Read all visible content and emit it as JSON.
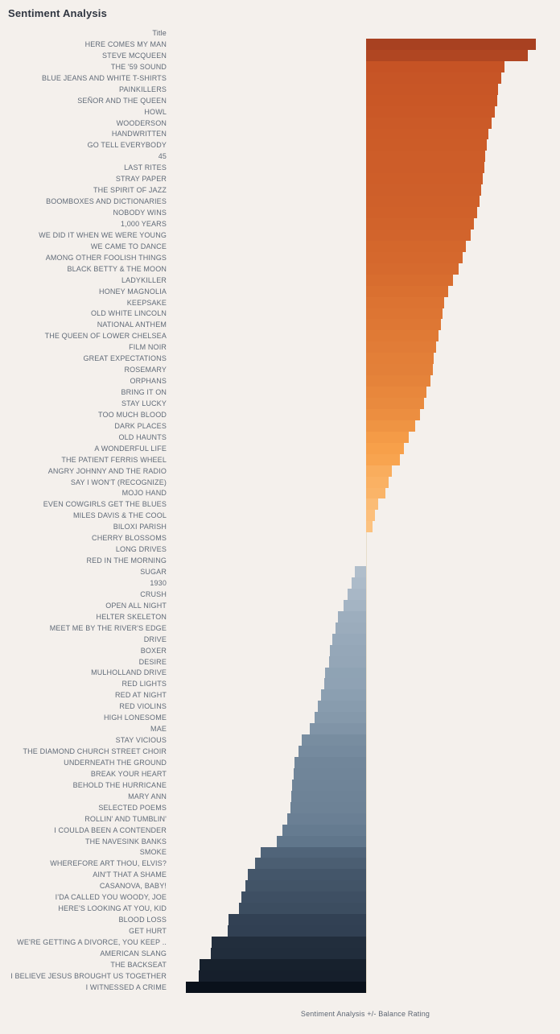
{
  "page": {
    "title": "Sentiment Analysis",
    "column_header": "Title",
    "axis_label": "Sentiment Analysis +/- Balance Rating"
  },
  "colors": {
    "background": "#f4f0ec",
    "title_text": "#2f3540",
    "label_text": "#616b78",
    "axis_line": "#e7ddcb",
    "positive_ramp": [
      [
        0.0,
        "#fdc98a"
      ],
      [
        0.2,
        "#f8a24b"
      ],
      [
        0.45,
        "#da7030"
      ],
      [
        0.77,
        "#c65325"
      ],
      [
        1.0,
        "#9e3b20"
      ]
    ],
    "negative_ramp": [
      [
        0.0,
        "#bcc8d4"
      ],
      [
        0.25,
        "#8b9fb1"
      ],
      [
        0.5,
        "#5f758a"
      ],
      [
        0.75,
        "#344457"
      ],
      [
        1.0,
        "#0a111b"
      ]
    ]
  },
  "chart_data": {
    "type": "bar",
    "orientation": "horizontal_diverging",
    "title": "Sentiment Analysis",
    "xlabel": "Sentiment Analysis +/- Balance Rating",
    "ylabel": "Title",
    "axis_numeric_ticks_visible": false,
    "legend": "none",
    "grid": "off",
    "value_units": "estimated +/- balance rating, normalized so the largest negative bar = -1.0 (no numeric axis labels shown)",
    "xlim": [
      -1.08,
      1.08
    ],
    "color_encoding": "bar value mapped to diverging orange(positive)/blue-black(negative) ramp",
    "categories": [
      "HERE COMES MY MAN",
      "STEVE MCQUEEN",
      "THE '59 SOUND",
      "BLUE JEANS AND WHITE T-SHIRTS",
      "PAINKILLERS",
      "SEÑOR AND THE QUEEN",
      "HOWL",
      "WOODERSON",
      "HANDWRITTEN",
      "GO TELL EVERYBODY",
      "45",
      "LAST RITES",
      "STRAY PAPER",
      "THE SPIRIT OF JAZZ",
      "BOOMBOXES AND DICTIONARIES",
      "NOBODY WINS",
      "1,000 YEARS",
      "WE DID IT WHEN WE WERE YOUNG",
      "WE CAME TO DANCE",
      "AMONG OTHER FOOLISH THINGS",
      "BLACK BETTY & THE MOON",
      "LADYKILLER",
      "HONEY MAGNOLIA",
      "KEEPSAKE",
      "OLD WHITE LINCOLN",
      "NATIONAL ANTHEM",
      "THE QUEEN OF LOWER CHELSEA",
      "FILM NOIR",
      "GREAT EXPECTATIONS",
      "ROSEMARY",
      "ORPHANS",
      "BRING IT ON",
      "STAY LUCKY",
      "TOO MUCH BLOOD",
      "DARK PLACES",
      "OLD HAUNTS",
      "A WONDERFUL LIFE",
      "THE PATIENT FERRIS WHEEL",
      "ANGRY JOHNNY AND THE RADIO",
      "SAY I WON'T (RECOGNIZE)",
      "MOJO HAND",
      "EVEN COWGIRLS GET THE BLUES",
      "MILES DAVIS & THE COOL",
      "BILOXI PARISH",
      "CHERRY BLOSSOMS",
      "LONG DRIVES",
      "RED IN THE MORNING",
      "SUGAR",
      "1930",
      "CRUSH",
      "OPEN ALL NIGHT",
      "HELTER SKELETON",
      "MEET ME BY THE RIVER'S EDGE",
      "DRIVE",
      "BOXER",
      "DESIRE",
      "MULHOLLAND DRIVE",
      "RED LIGHTS",
      "RED AT NIGHT",
      "RED VIOLINS",
      "HIGH LONESOME",
      "MAE",
      "STAY VICIOUS",
      "THE DIAMOND CHURCH STREET CHOIR",
      "UNDERNEATH THE GROUND",
      "BREAK YOUR HEART",
      "BEHOLD THE HURRICANE",
      "MARY ANN",
      "SELECTED POEMS",
      "ROLLIN' AND TUMBLIN'",
      "I COULDA BEEN A CONTENDER",
      "THE NAVESINK BANKS",
      "SMOKE",
      "WHEREFORE ART THOU, ELVIS?",
      "AIN'T THAT A SHAME",
      "CASANOVA, BABY!",
      "I'DA CALLED YOU WOODY, JOE",
      "HERE'S LOOKING AT YOU, KID",
      "BLOOD LOSS",
      "GET HURT",
      "WE'RE GETTING A DIVORCE, YOU KEEP ..",
      "AMERICAN SLANG",
      "THE BACKSEAT",
      "I BELIEVE JESUS BROUGHT US TOGETHER",
      "I WITNESSED A CRIME"
    ],
    "values": [
      0.942,
      0.897,
      0.768,
      0.75,
      0.732,
      0.728,
      0.714,
      0.696,
      0.679,
      0.67,
      0.661,
      0.656,
      0.647,
      0.638,
      0.629,
      0.616,
      0.598,
      0.58,
      0.554,
      0.536,
      0.513,
      0.482,
      0.455,
      0.433,
      0.424,
      0.415,
      0.402,
      0.388,
      0.375,
      0.371,
      0.357,
      0.335,
      0.321,
      0.299,
      0.272,
      0.237,
      0.21,
      0.188,
      0.143,
      0.125,
      0.107,
      0.067,
      0.049,
      0.036,
      0.0,
      0.0,
      0.0,
      -0.063,
      -0.08,
      -0.103,
      -0.125,
      -0.156,
      -0.17,
      -0.188,
      -0.201,
      -0.205,
      -0.228,
      -0.232,
      -0.25,
      -0.268,
      -0.286,
      -0.313,
      -0.357,
      -0.375,
      -0.397,
      -0.402,
      -0.411,
      -0.415,
      -0.42,
      -0.438,
      -0.464,
      -0.496,
      -0.585,
      -0.616,
      -0.656,
      -0.67,
      -0.692,
      -0.705,
      -0.763,
      -0.768,
      -0.857,
      -0.862,
      -0.924,
      -0.929,
      -1.0
    ]
  }
}
